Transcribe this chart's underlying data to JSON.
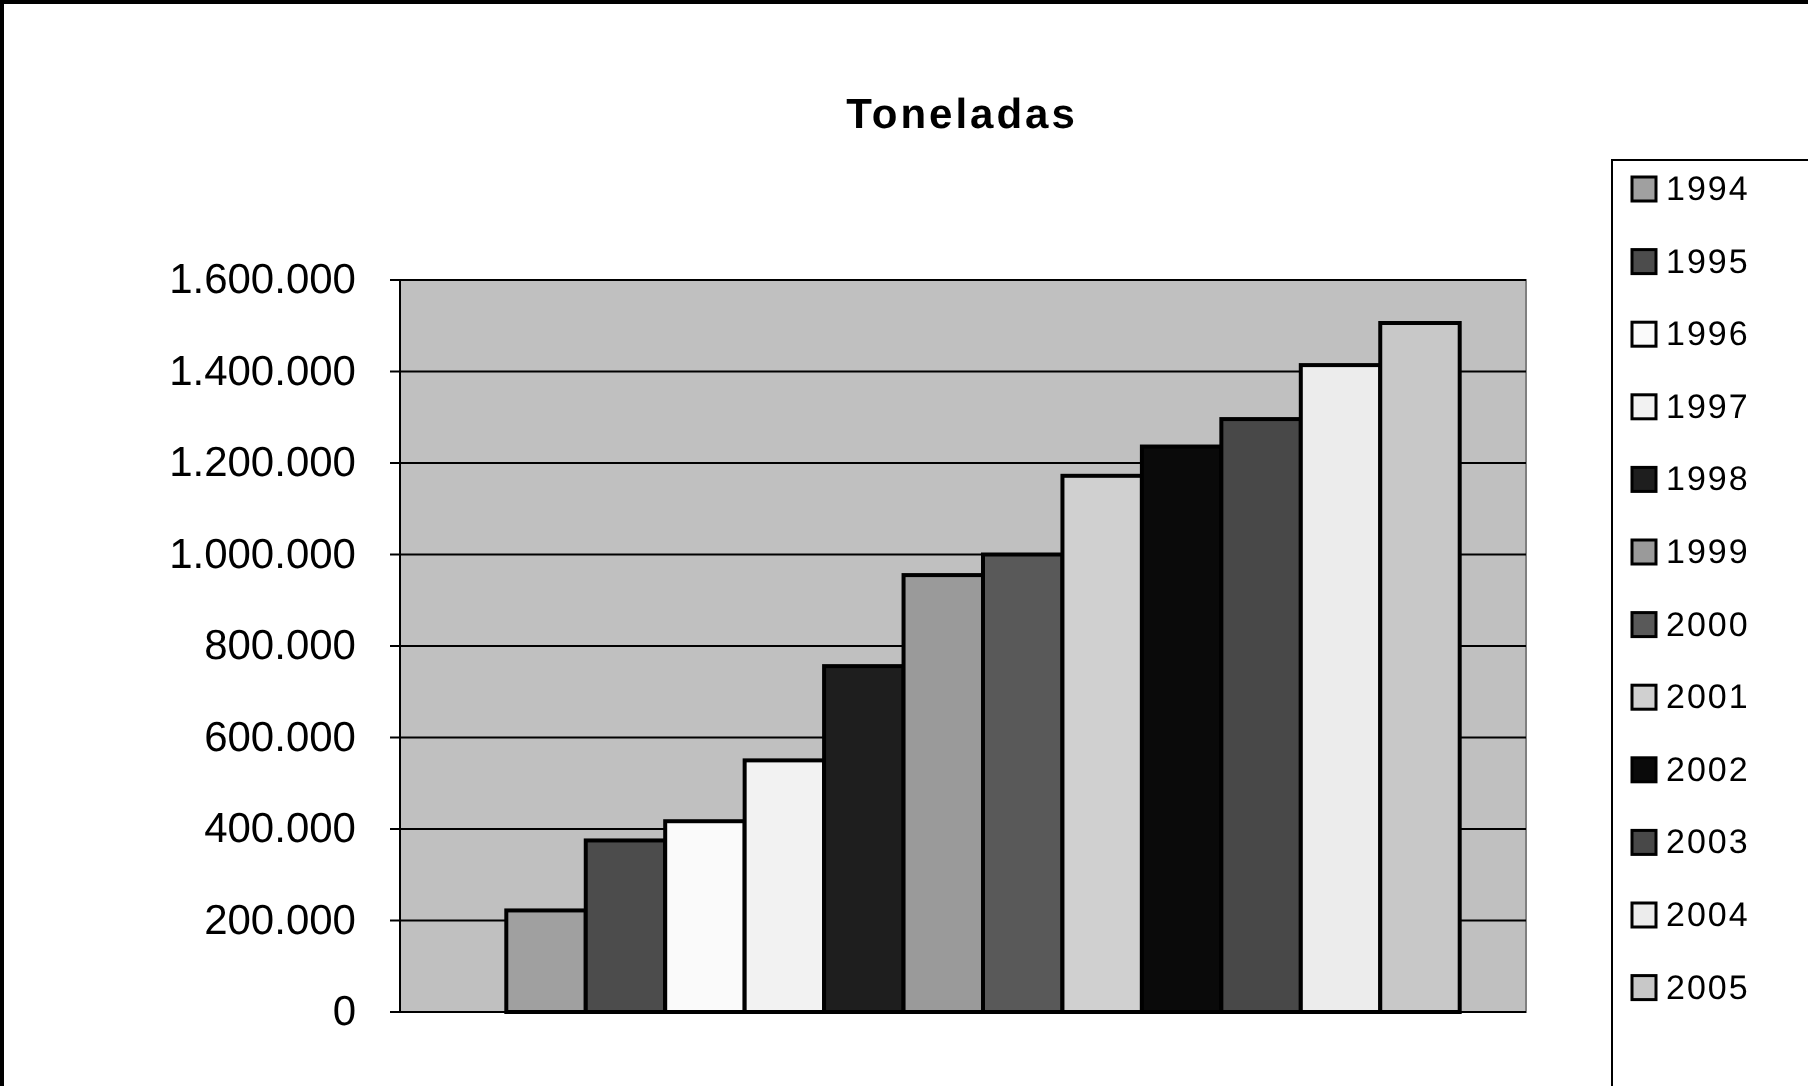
{
  "chart_data": {
    "type": "bar",
    "title": "Toneladas",
    "categories": [
      null
    ],
    "series": [
      {
        "name": "1994",
        "color": "#a0a0a0",
        "values": [
          222000
        ]
      },
      {
        "name": "1995",
        "color": "#4c4c4c",
        "values": [
          375000
        ]
      },
      {
        "name": "1996",
        "color": "#fafafa",
        "values": [
          417000
        ]
      },
      {
        "name": "1997",
        "color": "#f2f2f2",
        "values": [
          550000
        ]
      },
      {
        "name": "1998",
        "color": "#1e1e1e",
        "values": [
          756000
        ]
      },
      {
        "name": "1999",
        "color": "#9a9a9a",
        "values": [
          955000
        ]
      },
      {
        "name": "2000",
        "color": "#595959",
        "values": [
          1000000
        ]
      },
      {
        "name": "2001",
        "color": "#d0d0d0",
        "values": [
          1172000
        ]
      },
      {
        "name": "2002",
        "color": "#0a0a0a",
        "values": [
          1236000
        ]
      },
      {
        "name": "2003",
        "color": "#484848",
        "values": [
          1296000
        ]
      },
      {
        "name": "2004",
        "color": "#ececec",
        "values": [
          1414000
        ]
      },
      {
        "name": "2005",
        "color": "#c8c8c8",
        "values": [
          1506000
        ]
      }
    ],
    "ylim": [
      0,
      1600000
    ],
    "yticks": [
      0,
      {
        "value": 200000,
        "label": "200.000"
      },
      {
        "value": 400000,
        "label": "400.000"
      },
      {
        "value": 600000,
        "label": "600.000"
      },
      {
        "value": 800000,
        "label": "800.000"
      },
      {
        "value": 1000000,
        "label": "1.000.000"
      },
      {
        "value": 1200000,
        "label": "1.200.000"
      },
      {
        "value": 1400000,
        "label": "1.400.000"
      },
      {
        "value": 1600000,
        "label": "1.600.000"
      }
    ],
    "grid": "y",
    "legend": "right"
  }
}
